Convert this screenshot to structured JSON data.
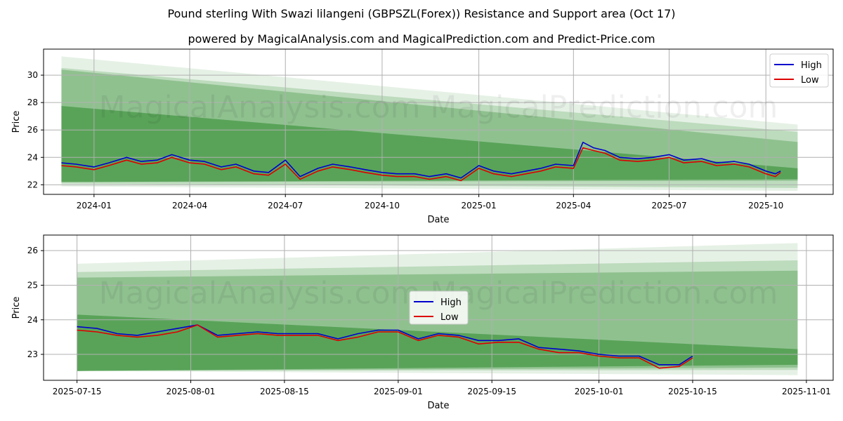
{
  "title": "Pound sterling With Swazi lilangeni (GBPSZL(Forex)) Resistance and Support area (Oct 17)",
  "subtitle": "powered by MagicalAnalysis.com and MagicalPrediction.com and Predict-Price.com",
  "watermark": "MagicalAnalysis.com    MagicalPrediction.com",
  "colors": {
    "high": "#0000cc",
    "low": "#dd0000",
    "band": "#2e8b2e",
    "grid": "#b0b0b0"
  },
  "chart_data": [
    {
      "type": "line",
      "xlabel": "Date",
      "ylabel": "Price",
      "xlim": [
        "2023-11-14",
        "2025-12-04"
      ],
      "ylim": [
        21.3,
        31.9
      ],
      "x_ticks": [
        "2024-01",
        "2024-04",
        "2024-07",
        "2024-10",
        "2025-01",
        "2025-04",
        "2025-07",
        "2025-10"
      ],
      "x_tick_dates": [
        "2024-01-01",
        "2024-04-01",
        "2024-07-01",
        "2024-10-01",
        "2025-01-01",
        "2025-04-01",
        "2025-07-01",
        "2025-10-01"
      ],
      "y_ticks": [
        22,
        24,
        26,
        28,
        30
      ],
      "grid": true,
      "legend": "top-right",
      "series": [
        {
          "name": "High",
          "x": [
            "2023-12-01",
            "2023-12-15",
            "2024-01-01",
            "2024-01-15",
            "2024-02-01",
            "2024-02-15",
            "2024-03-01",
            "2024-03-15",
            "2024-04-01",
            "2024-04-15",
            "2024-05-01",
            "2024-05-15",
            "2024-06-01",
            "2024-06-15",
            "2024-07-01",
            "2024-07-15",
            "2024-08-01",
            "2024-08-15",
            "2024-09-01",
            "2024-09-15",
            "2024-10-01",
            "2024-10-15",
            "2024-11-01",
            "2024-11-15",
            "2024-12-01",
            "2024-12-15",
            "2025-01-01",
            "2025-01-15",
            "2025-02-01",
            "2025-02-15",
            "2025-03-01",
            "2025-03-15",
            "2025-04-01",
            "2025-04-10",
            "2025-04-20",
            "2025-05-01",
            "2025-05-15",
            "2025-06-01",
            "2025-06-15",
            "2025-07-01",
            "2025-07-15",
            "2025-08-01",
            "2025-08-15",
            "2025-09-01",
            "2025-09-15",
            "2025-10-01",
            "2025-10-10",
            "2025-10-15"
          ],
          "values": [
            23.6,
            23.5,
            23.3,
            23.6,
            24.0,
            23.7,
            23.8,
            24.2,
            23.8,
            23.7,
            23.3,
            23.5,
            23.0,
            22.9,
            23.8,
            22.6,
            23.2,
            23.5,
            23.3,
            23.1,
            22.9,
            22.8,
            22.8,
            22.6,
            22.8,
            22.5,
            23.4,
            23.0,
            22.8,
            23.0,
            23.2,
            23.5,
            23.4,
            25.1,
            24.7,
            24.5,
            24.0,
            23.9,
            24.0,
            24.2,
            23.8,
            23.9,
            23.6,
            23.7,
            23.5,
            23.0,
            22.8,
            23.0
          ]
        },
        {
          "name": "Low",
          "x": [
            "2023-12-01",
            "2023-12-15",
            "2024-01-01",
            "2024-01-15",
            "2024-02-01",
            "2024-02-15",
            "2024-03-01",
            "2024-03-15",
            "2024-04-01",
            "2024-04-15",
            "2024-05-01",
            "2024-05-15",
            "2024-06-01",
            "2024-06-15",
            "2024-07-01",
            "2024-07-15",
            "2024-08-01",
            "2024-08-15",
            "2024-09-01",
            "2024-09-15",
            "2024-10-01",
            "2024-10-15",
            "2024-11-01",
            "2024-11-15",
            "2024-12-01",
            "2024-12-15",
            "2025-01-01",
            "2025-01-15",
            "2025-02-01",
            "2025-02-15",
            "2025-03-01",
            "2025-03-15",
            "2025-04-01",
            "2025-04-10",
            "2025-04-20",
            "2025-05-01",
            "2025-05-15",
            "2025-06-01",
            "2025-06-15",
            "2025-07-01",
            "2025-07-15",
            "2025-08-01",
            "2025-08-15",
            "2025-09-01",
            "2025-09-15",
            "2025-10-01",
            "2025-10-10",
            "2025-10-15"
          ],
          "values": [
            23.4,
            23.3,
            23.1,
            23.4,
            23.8,
            23.5,
            23.6,
            24.0,
            23.6,
            23.5,
            23.1,
            23.3,
            22.8,
            22.7,
            23.5,
            22.4,
            23.0,
            23.3,
            23.1,
            22.9,
            22.7,
            22.6,
            22.6,
            22.4,
            22.6,
            22.3,
            23.2,
            22.8,
            22.6,
            22.8,
            23.0,
            23.3,
            23.2,
            24.7,
            24.5,
            24.3,
            23.8,
            23.7,
            23.8,
            24.0,
            23.6,
            23.7,
            23.4,
            23.5,
            23.3,
            22.8,
            22.6,
            22.9
          ]
        }
      ]
    },
    {
      "type": "line",
      "xlabel": "Date",
      "ylabel": "Price",
      "xlim": [
        "2025-07-10",
        "2025-11-05"
      ],
      "ylim": [
        22.25,
        26.45
      ],
      "x_ticks": [
        "2025-07-15",
        "2025-08-01",
        "2025-08-15",
        "2025-09-01",
        "2025-09-15",
        "2025-10-01",
        "2025-10-15",
        "2025-11-01"
      ],
      "y_ticks": [
        23,
        24,
        25,
        26
      ],
      "grid": true,
      "legend": "center",
      "series": [
        {
          "name": "High",
          "x": [
            "2025-07-15",
            "2025-07-18",
            "2025-07-21",
            "2025-07-24",
            "2025-07-27",
            "2025-07-30",
            "2025-08-02",
            "2025-08-05",
            "2025-08-08",
            "2025-08-11",
            "2025-08-14",
            "2025-08-17",
            "2025-08-20",
            "2025-08-23",
            "2025-08-26",
            "2025-08-29",
            "2025-09-01",
            "2025-09-04",
            "2025-09-07",
            "2025-09-10",
            "2025-09-13",
            "2025-09-16",
            "2025-09-19",
            "2025-09-22",
            "2025-09-25",
            "2025-09-28",
            "2025-10-01",
            "2025-10-04",
            "2025-10-07",
            "2025-10-10",
            "2025-10-13",
            "2025-10-15"
          ],
          "values": [
            23.8,
            23.75,
            23.6,
            23.55,
            23.65,
            23.75,
            23.85,
            23.55,
            23.6,
            23.65,
            23.6,
            23.6,
            23.6,
            23.45,
            23.6,
            23.7,
            23.7,
            23.45,
            23.6,
            23.55,
            23.4,
            23.4,
            23.45,
            23.2,
            23.15,
            23.1,
            23.0,
            22.95,
            22.95,
            22.7,
            22.7,
            22.95
          ]
        },
        {
          "name": "Low",
          "x": [
            "2025-07-15",
            "2025-07-18",
            "2025-07-21",
            "2025-07-24",
            "2025-07-27",
            "2025-07-30",
            "2025-08-02",
            "2025-08-05",
            "2025-08-08",
            "2025-08-11",
            "2025-08-14",
            "2025-08-17",
            "2025-08-20",
            "2025-08-23",
            "2025-08-26",
            "2025-08-29",
            "2025-09-01",
            "2025-09-04",
            "2025-09-07",
            "2025-09-10",
            "2025-09-13",
            "2025-09-16",
            "2025-09-19",
            "2025-09-22",
            "2025-09-25",
            "2025-09-28",
            "2025-10-01",
            "2025-10-04",
            "2025-10-07",
            "2025-10-10",
            "2025-10-13",
            "2025-10-15"
          ],
          "values": [
            23.7,
            23.65,
            23.55,
            23.5,
            23.55,
            23.65,
            23.85,
            23.5,
            23.55,
            23.6,
            23.55,
            23.55,
            23.55,
            23.4,
            23.5,
            23.65,
            23.65,
            23.4,
            23.55,
            23.5,
            23.3,
            23.35,
            23.35,
            23.15,
            23.05,
            23.05,
            22.95,
            22.9,
            22.9,
            22.6,
            22.65,
            22.9
          ]
        }
      ]
    }
  ]
}
